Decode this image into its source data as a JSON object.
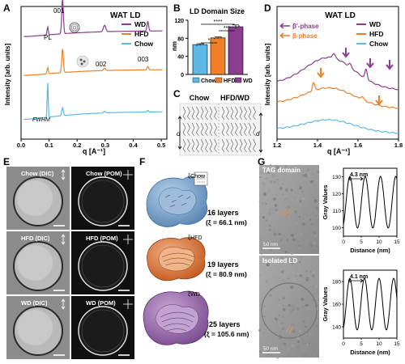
{
  "panels": {
    "A": {
      "letter": "A",
      "title": "WAT LD",
      "ylabel": "Intensity [arb. units]",
      "xlabel": "q [A⁻¹]",
      "xticks": [
        "0.0",
        "0.1",
        "0.2",
        "0.3",
        "0.4",
        "0.5"
      ],
      "legend": [
        "WD",
        "HFD",
        "Chow"
      ],
      "annotations": {
        "peak1": "001",
        "peak2": "002",
        "peak3": "003",
        "pl": "PL",
        "fwhm": "FWHM"
      }
    },
    "B": {
      "letter": "B",
      "title": "LD Domain Size",
      "ylabel": "nm",
      "sig1": "*",
      "sig2": "***",
      "sig3": "****",
      "legend": [
        "Chow",
        "HFD",
        "WD"
      ]
    },
    "C": {
      "letter": "C",
      "left_title": "Chow",
      "right_title": "HFD/WD",
      "left_sub": "d",
      "right_sub": "d"
    },
    "D": {
      "letter": "D",
      "title": "WAT LD",
      "ylabel": "Intensity [arb. units]",
      "xlabel": "q [A⁻¹]",
      "xticks": [
        "1.2",
        "1.4",
        "1.6",
        "1.8"
      ],
      "legend": [
        "WD",
        "HFD",
        "Chow"
      ],
      "phase_legend": [
        "β'-phase",
        "β-phase"
      ]
    },
    "E": {
      "letter": "E",
      "labels": [
        "Chow (DIC)",
        "Chow (POM)",
        "HFD (DIC)",
        "HFD (POM)",
        "WD (DIC)",
        "WD (POM)"
      ]
    },
    "F": {
      "letter": "F",
      "layers": [
        "16 layers",
        "19 layers",
        "25 layers"
      ],
      "xi": [
        "(ξ = 66.1 nm)",
        "(ξ = 80.9 nm)",
        "(ξ = 105.6 nm)"
      ],
      "xi_labels": [
        "ξChow",
        "ξHFD",
        "ξWD"
      ]
    },
    "G": {
      "letter": "G",
      "img_labels": [
        "TAG domain",
        "Isolated LD"
      ],
      "scalebars": [
        "50 nm",
        "50 nm"
      ],
      "plot1_spacing": "4.3 nm",
      "plot2_spacing": "4.1 nm",
      "ylabel": "Gray Values",
      "xlabel": "Distance (nm)",
      "plot1_yticks": [
        "100",
        "110",
        "120",
        "130"
      ],
      "plot2_yticks": [
        "140",
        "160",
        "180"
      ],
      "xticks": [
        "0",
        "5",
        "10",
        "15"
      ]
    }
  },
  "colors": {
    "wd": "#8b3d8f",
    "hfd": "#f07f2a",
    "chow": "#5cb8e6"
  },
  "chart_data": [
    {
      "type": "line",
      "panel": "A",
      "title": "WAT LD",
      "xlabel": "q [A⁻¹]",
      "ylabel": "Intensity [arb. units]",
      "xlim": [
        0,
        0.52
      ],
      "series": [
        {
          "name": "WD",
          "peaks_q": [
            0.095,
            0.148,
            0.298,
            0.452
          ]
        },
        {
          "name": "HFD",
          "peaks_q": [
            0.095,
            0.148,
            0.298,
            0.452
          ]
        },
        {
          "name": "Chow",
          "peaks_q": [
            0.095,
            0.148,
            0.298,
            0.452
          ]
        }
      ]
    },
    {
      "type": "bar",
      "panel": "B",
      "title": "LD Domain Size",
      "ylabel": "nm",
      "categories": [
        "Chow",
        "HFD",
        "WD"
      ],
      "values": [
        66.1,
        80.9,
        105.6
      ],
      "errors": [
        2,
        2,
        4
      ],
      "ylim": [
        0,
        120
      ],
      "yticks": [
        0,
        40,
        80,
        120
      ],
      "legend": [
        "Chow",
        "HFD",
        "WD"
      ]
    },
    {
      "type": "line",
      "panel": "D",
      "title": "WAT LD",
      "xlabel": "q [A⁻¹]",
      "ylabel": "Intensity [arb. units]",
      "xlim": [
        1.2,
        1.8
      ],
      "series": [
        {
          "name": "WD",
          "peaks_q": [
            1.48,
            1.56,
            1.64
          ]
        },
        {
          "name": "HFD",
          "peaks_q": [
            1.38,
            1.62
          ]
        },
        {
          "name": "Chow"
        }
      ]
    },
    {
      "type": "line",
      "panel": "G1",
      "xlabel": "Distance (nm)",
      "ylabel": "Gray Values",
      "xlim": [
        0,
        15
      ],
      "ylim": [
        95,
        135
      ],
      "period_nm": 4.3
    },
    {
      "type": "line",
      "panel": "G2",
      "xlabel": "Distance (nm)",
      "ylabel": "Gray Values",
      "xlim": [
        0,
        15
      ],
      "ylim": [
        130,
        190
      ],
      "period_nm": 4.1
    }
  ]
}
